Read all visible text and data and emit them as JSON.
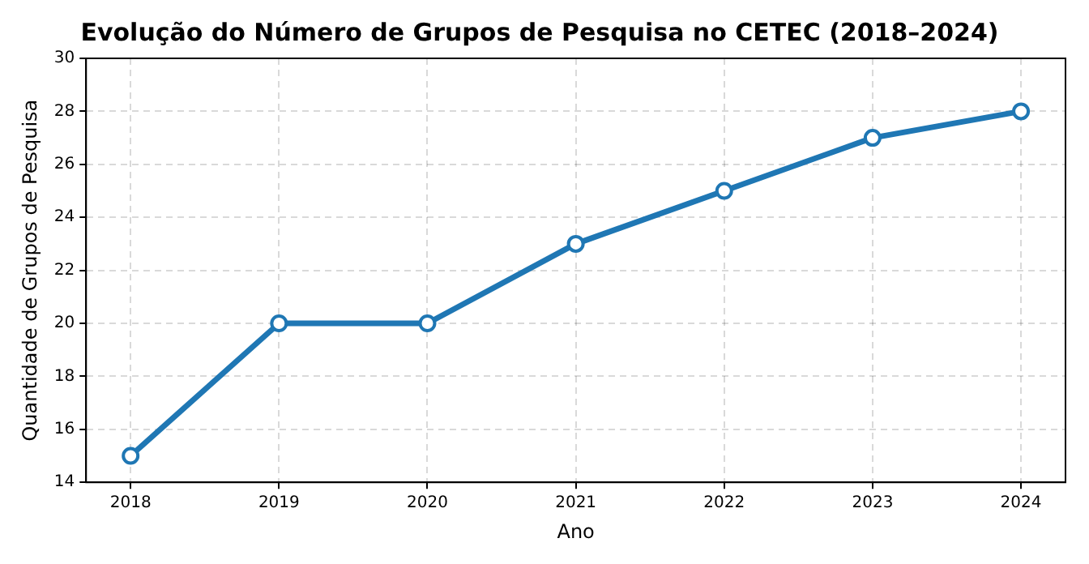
{
  "chart_data": {
    "type": "line",
    "title": "Evolução do Número de Grupos de Pesquisa no CETEC (2018–2024)",
    "xlabel": "Ano",
    "ylabel": "Quantidade de Grupos de Pesquisa",
    "x": [
      2018,
      2019,
      2020,
      2021,
      2022,
      2023,
      2024
    ],
    "series": [
      {
        "color": "#1f77b4",
        "values": [
          15,
          20,
          20,
          23,
          25,
          27,
          28
        ]
      }
    ],
    "xlim": [
      2017.7,
      2024.3
    ],
    "xticks": [
      2018,
      2019,
      2020,
      2021,
      2022,
      2023,
      2024
    ],
    "ylim": [
      14,
      30
    ],
    "yticks": [
      14,
      16,
      18,
      20,
      22,
      24,
      26,
      28,
      30
    ],
    "grid": true,
    "marker": "circle",
    "line_style": "solid"
  }
}
